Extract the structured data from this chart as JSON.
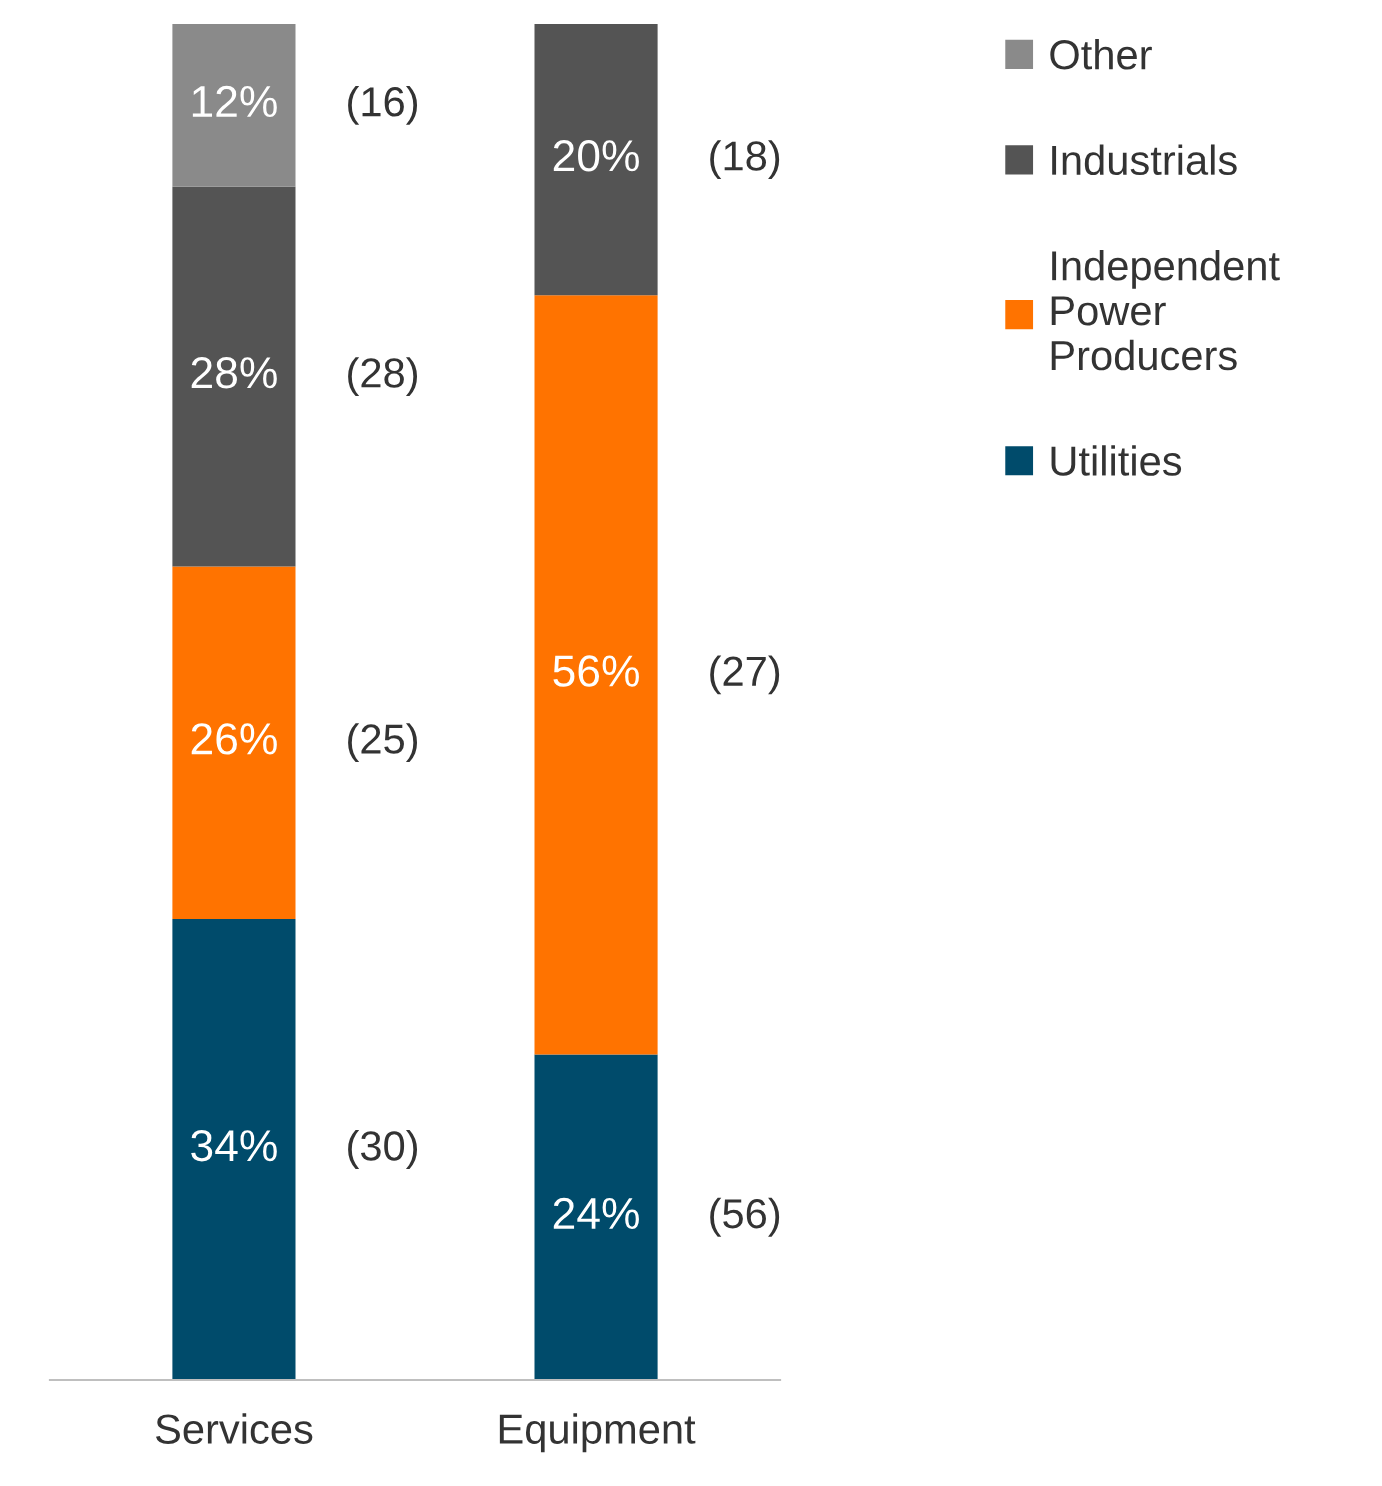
{
  "chart_data": {
    "type": "bar",
    "stacked": true,
    "categories": [
      "Services",
      "Equipment"
    ],
    "series": [
      {
        "name": "Utilities",
        "color": "#004b6b",
        "values": [
          34,
          24
        ],
        "value_labels": [
          "34%",
          "24%"
        ]
      },
      {
        "name": "Independent Power Producers",
        "color": "#ff7300",
        "values": [
          26,
          56
        ],
        "value_labels": [
          "26%",
          "56%"
        ]
      },
      {
        "name": "Industrials",
        "color": "#545454",
        "values": [
          28,
          20
        ],
        "value_labels": [
          "28%",
          "20%"
        ]
      },
      {
        "name": "Other",
        "color": "#8a8a8a",
        "values": [
          12,
          null
        ],
        "value_labels": [
          "12%",
          null
        ]
      }
    ],
    "annotations": [
      "(30)",
      "(56)",
      "(25)",
      "(27)",
      "(28)",
      "(18)",
      "(16)"
    ],
    "legend": "right"
  }
}
